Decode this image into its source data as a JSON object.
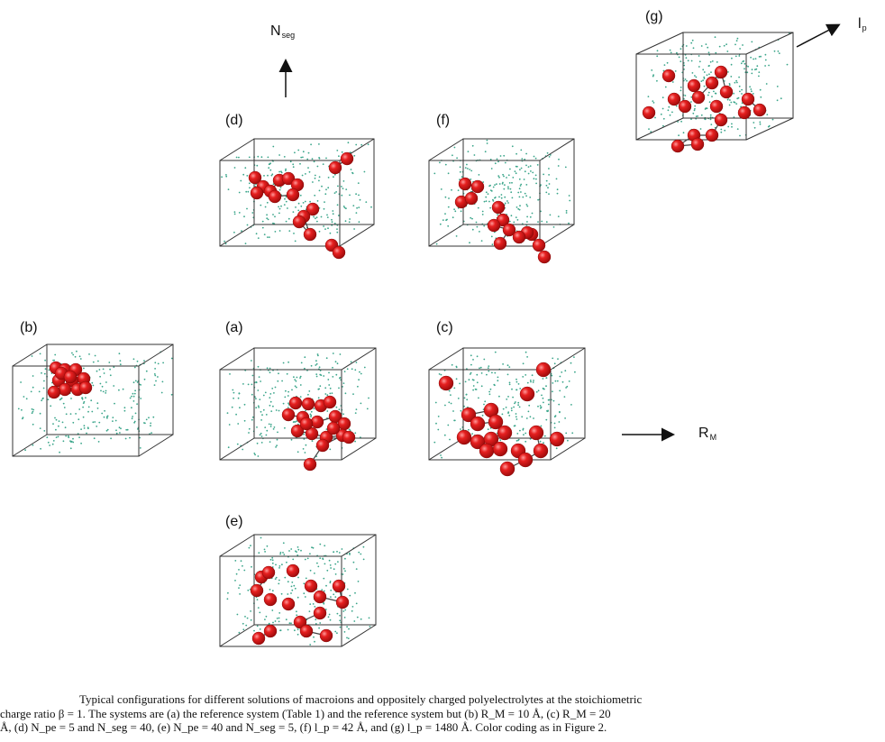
{
  "panels": {
    "a": "(a)",
    "b": "(b)",
    "c": "(c)",
    "d": "(d)",
    "e": "(e)",
    "f": "(f)",
    "g": "(g)"
  },
  "axes": {
    "nseg_main": "N",
    "nseg_sub": "seg",
    "rm_main": "R",
    "rm_sub": "M",
    "lp_main": "l",
    "lp_sub": "p"
  },
  "caption": {
    "line1": "Typical configurations for different solutions of macroions and oppositely charged polyelectrolytes at the stoichiometric",
    "line2": "charge ratio β = 1. The systems are (a) the reference system (Table 1) and the reference system but (b) R_M = 10 Å, (c) R_M = 20",
    "line3": "Å, (d) N_pe = 5 and N_seg = 40, (e) N_pe = 40 and N_seg = 5, (f) l_p = 42 Å, and (g) l_p = 1480 Å. Color coding as in Figure 2."
  },
  "colors": {
    "sphere": "#e01818",
    "sphere_highlight": "#ff8a8a",
    "counterion": "#3aa58a",
    "box_edge": "#333333"
  }
}
